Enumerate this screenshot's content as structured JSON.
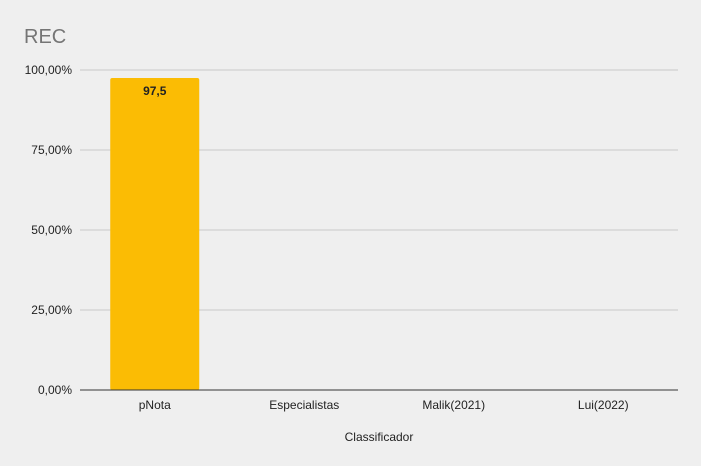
{
  "chart_data": {
    "type": "bar",
    "title": "REC",
    "xlabel": "Classificador",
    "ylabel": "",
    "categories": [
      "pNota",
      "Especialistas",
      "Malik(2021)",
      "Lui(2022)"
    ],
    "series": [
      {
        "values": [
          97.5,
          0,
          0,
          0
        ]
      }
    ],
    "data_labels": [
      "97,5",
      "",
      "",
      ""
    ],
    "ylim": [
      0,
      100
    ],
    "yticks": [
      0,
      25,
      50,
      75,
      100
    ],
    "ytick_labels": [
      "0,00%",
      "25,00%",
      "50,00%",
      "75,00%",
      "100,00%"
    ],
    "grid": true,
    "legend": "none",
    "colors": {
      "bar": "#fbbc04",
      "background": "#efefef",
      "grid": "#c8c8c8",
      "axis": "#333333",
      "title": "#757575",
      "text": "#222222"
    }
  }
}
